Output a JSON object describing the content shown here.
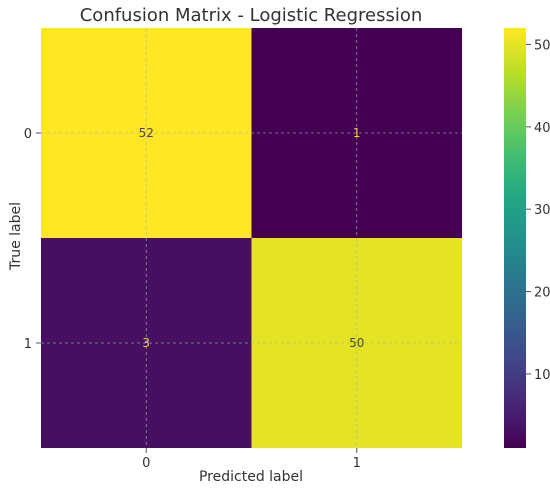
{
  "chart_data": {
    "type": "heatmap",
    "title": "Confusion Matrix - Logistic Regression",
    "xlabel": "Predicted label",
    "ylabel": "True label",
    "x_categories": [
      "0",
      "1"
    ],
    "y_categories": [
      "0",
      "1"
    ],
    "values": [
      [
        52,
        1
      ],
      [
        3,
        50
      ]
    ],
    "colormap": "viridis",
    "colorbar": {
      "min": 1,
      "max": 52,
      "ticks": [
        10,
        20,
        30,
        40,
        50
      ]
    },
    "grid": true
  }
}
